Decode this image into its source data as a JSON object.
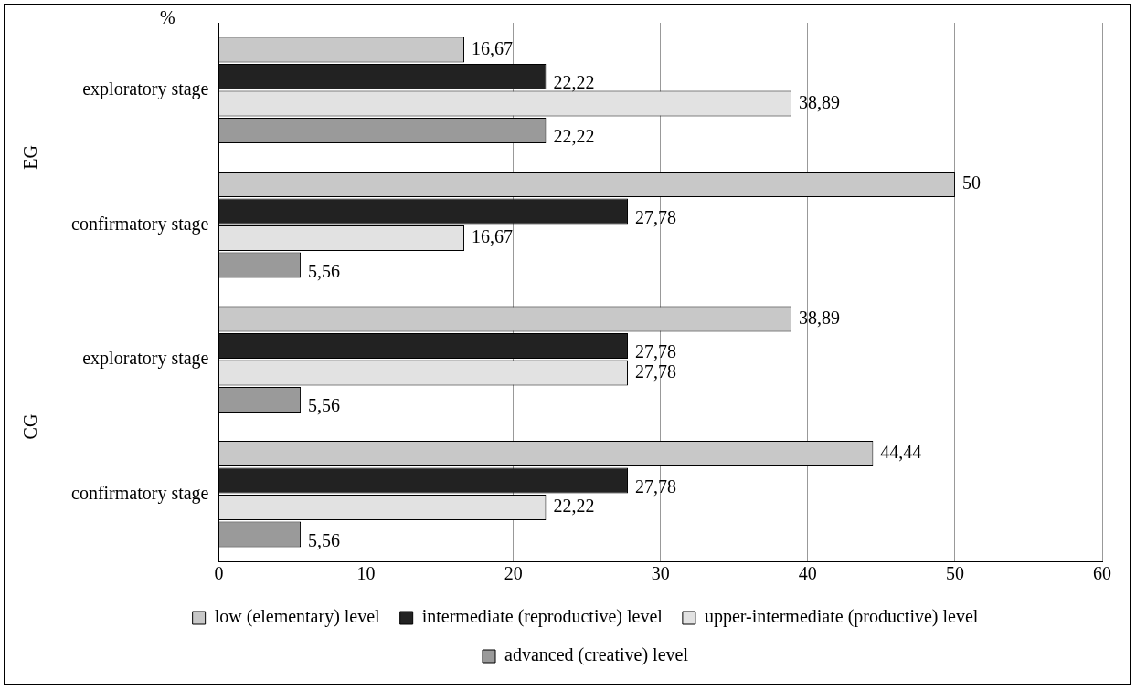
{
  "chart_data": {
    "type": "bar",
    "orientation": "horizontal",
    "xlabel": "%",
    "annotations": [
      "EG",
      "CG"
    ],
    "categories": [
      "exploratory stage",
      "confirmatory stage",
      "exploratory stage",
      "confirmatory stage"
    ],
    "series": [
      {
        "name": "low (elementary) level",
        "color": "#c8c8c8",
        "values": [
          16.67,
          50,
          38.89,
          44.44
        ],
        "value_labels": [
          "16,67",
          "50",
          "38,89",
          "44,44"
        ]
      },
      {
        "name": "intermediate (reproductive) level",
        "color": "#222222",
        "values": [
          22.22,
          27.78,
          27.78,
          27.78
        ],
        "value_labels": [
          "22,22",
          "27,78",
          "27,78",
          "27,78"
        ]
      },
      {
        "name": "upper-intermediate (productive) level",
        "color": "#e2e2e2",
        "values": [
          38.89,
          16.67,
          27.78,
          22.22
        ],
        "value_labels": [
          "38,89",
          "16,67",
          "27,78",
          "22,22"
        ]
      },
      {
        "name": "advanced (creative) level",
        "color": "#9a9a9a",
        "values": [
          22.22,
          5.56,
          5.56,
          5.56
        ],
        "value_labels": [
          "22,22",
          "5,56",
          "5,56",
          "5,56"
        ]
      }
    ],
    "xlim": [
      0,
      60
    ],
    "xticks": [
      0,
      10,
      20,
      30,
      40,
      50,
      60
    ],
    "grid": "x",
    "legend": "bottom"
  }
}
